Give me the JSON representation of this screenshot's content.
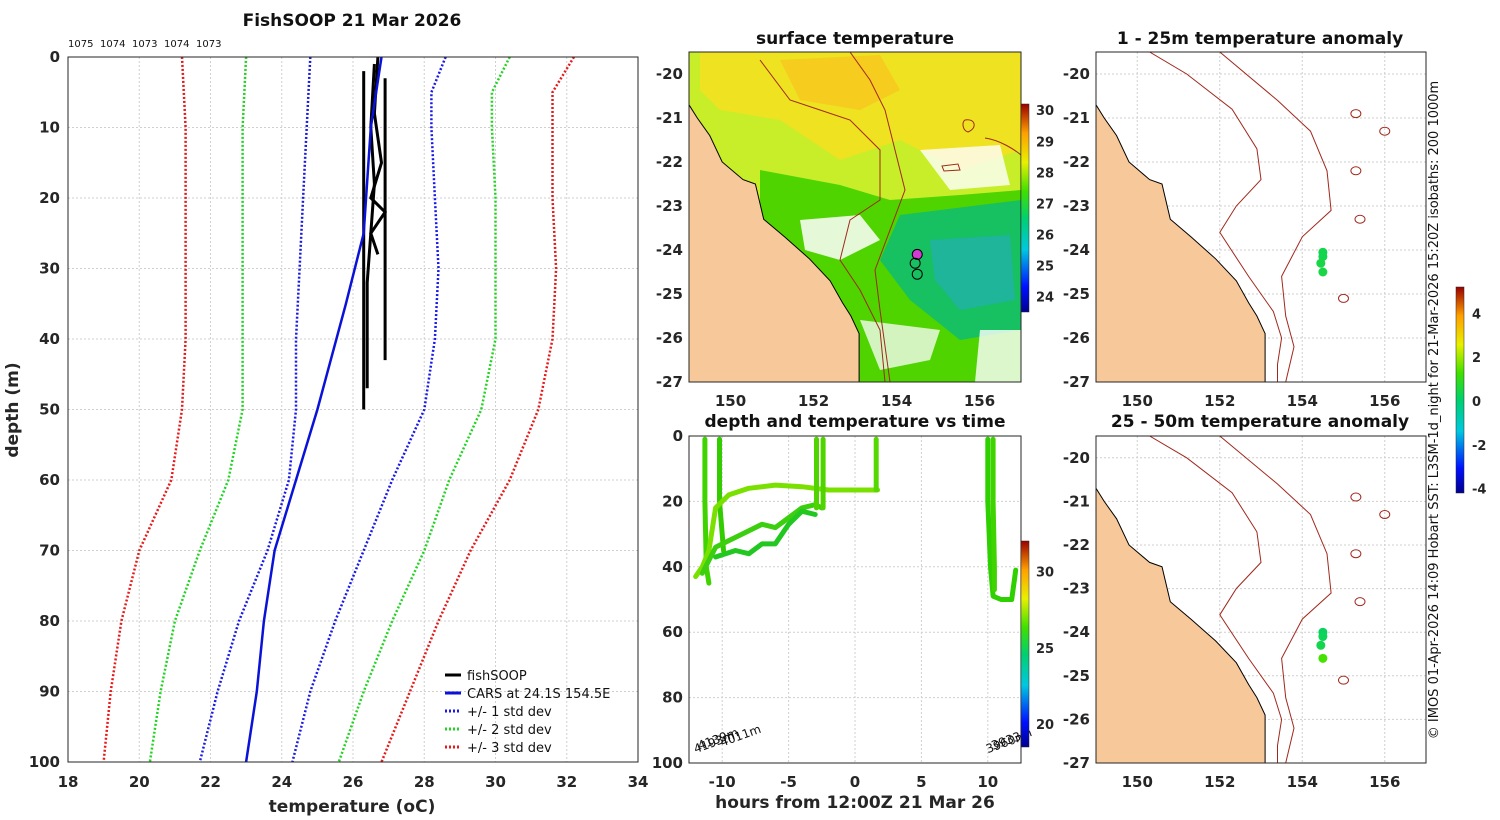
{
  "figure": {
    "side_note": "© IMOS 01-Apr-2026 14:09 Hobart SST: L3SM-1d_night for 21-Mar-2026 15:20Z isobaths: 200  1000m"
  },
  "colors": {
    "profile": "#000000",
    "cars": "#0a12d8",
    "std1": "#1a1ae6",
    "std2": "#22d422",
    "std3": "#e61a1a",
    "land": "#f7c99a",
    "isobath": "#a0281c",
    "track": "#22d022"
  },
  "chart_data": [
    {
      "id": "profile",
      "type": "line",
      "title": "FishSOOP 21 Mar 2026",
      "xlabel": "temperature (oC)",
      "ylabel": "depth (m)",
      "xlim": [
        18,
        34
      ],
      "ylim": [
        0,
        100
      ],
      "y_reversed": true,
      "x_ticks": [
        18,
        20,
        22,
        24,
        26,
        28,
        30,
        32,
        34
      ],
      "y_ticks": [
        0,
        10,
        20,
        30,
        40,
        50,
        60,
        70,
        80,
        90,
        100
      ],
      "grid": true,
      "legend_position": "bottom-right",
      "top_annotations": [
        "1075",
        "1074",
        "1073",
        "1074",
        "1073"
      ],
      "series": [
        {
          "name": "fishSOOP",
          "style": "solid",
          "color_key": "profile",
          "traces": [
            [
              [
                26.3,
                2
              ],
              [
                26.3,
                15
              ],
              [
                26.3,
                30
              ],
              [
                26.3,
                40
              ],
              [
                26.3,
                50
              ]
            ],
            [
              [
                26.6,
                1
              ],
              [
                26.5,
                10
              ],
              [
                26.6,
                18
              ],
              [
                26.5,
                25
              ],
              [
                26.4,
                32
              ],
              [
                26.4,
                40
              ],
              [
                26.4,
                47
              ]
            ],
            [
              [
                26.7,
                0
              ],
              [
                26.6,
                8
              ],
              [
                26.8,
                15
              ],
              [
                26.5,
                20
              ],
              [
                26.9,
                22
              ],
              [
                26.5,
                25
              ],
              [
                26.7,
                28
              ]
            ],
            [
              [
                26.9,
                3
              ],
              [
                26.9,
                15
              ],
              [
                26.9,
                25
              ],
              [
                26.9,
                35
              ],
              [
                26.9,
                43
              ]
            ]
          ]
        },
        {
          "name": "CARS at 24.1S 154.5E",
          "style": "solid",
          "color_key": "cars",
          "points": [
            [
              26.8,
              0
            ],
            [
              26.5,
              10
            ],
            [
              26.3,
              25
            ],
            [
              25.8,
              35
            ],
            [
              25.0,
              50
            ],
            [
              24.4,
              60
            ],
            [
              23.8,
              70
            ],
            [
              23.5,
              80
            ],
            [
              23.3,
              90
            ],
            [
              23.0,
              100
            ]
          ]
        },
        {
          "name": "+/- 1 std dev",
          "style": "dotted",
          "color_key": "std1",
          "low": [
            [
              24.8,
              0
            ],
            [
              24.7,
              10
            ],
            [
              24.6,
              20
            ],
            [
              24.5,
              30
            ],
            [
              24.4,
              40
            ],
            [
              24.4,
              50
            ],
            [
              24.2,
              60
            ],
            [
              23.6,
              70
            ],
            [
              22.8,
              80
            ],
            [
              22.2,
              90
            ],
            [
              21.7,
              100
            ]
          ],
          "high": [
            [
              28.6,
              0
            ],
            [
              28.2,
              5
            ],
            [
              28.2,
              10
            ],
            [
              28.3,
              20
            ],
            [
              28.4,
              30
            ],
            [
              28.3,
              40
            ],
            [
              28.0,
              50
            ],
            [
              27.1,
              60
            ],
            [
              26.3,
              70
            ],
            [
              25.5,
              80
            ],
            [
              24.8,
              90
            ],
            [
              24.3,
              100
            ]
          ]
        },
        {
          "name": "+/- 2 std dev",
          "style": "dotted",
          "color_key": "std2",
          "low": [
            [
              23.0,
              0
            ],
            [
              22.9,
              10
            ],
            [
              22.9,
              20
            ],
            [
              22.9,
              30
            ],
            [
              22.9,
              40
            ],
            [
              22.9,
              50
            ],
            [
              22.5,
              60
            ],
            [
              21.7,
              70
            ],
            [
              21.0,
              80
            ],
            [
              20.6,
              90
            ],
            [
              20.3,
              100
            ]
          ],
          "high": [
            [
              30.4,
              0
            ],
            [
              29.9,
              5
            ],
            [
              29.9,
              10
            ],
            [
              30.0,
              20
            ],
            [
              30.0,
              30
            ],
            [
              30.0,
              40
            ],
            [
              29.6,
              50
            ],
            [
              28.7,
              60
            ],
            [
              28.0,
              70
            ],
            [
              27.1,
              80
            ],
            [
              26.3,
              90
            ],
            [
              25.6,
              100
            ]
          ]
        },
        {
          "name": "+/- 3 std dev",
          "style": "dotted",
          "color_key": "std3",
          "low": [
            [
              21.2,
              0
            ],
            [
              21.3,
              10
            ],
            [
              21.3,
              20
            ],
            [
              21.3,
              30
            ],
            [
              21.3,
              40
            ],
            [
              21.2,
              50
            ],
            [
              20.9,
              60
            ],
            [
              20.0,
              70
            ],
            [
              19.5,
              80
            ],
            [
              19.2,
              90
            ],
            [
              19.0,
              100
            ]
          ],
          "high": [
            [
              32.2,
              0
            ],
            [
              31.6,
              5
            ],
            [
              31.6,
              10
            ],
            [
              31.6,
              20
            ],
            [
              31.7,
              30
            ],
            [
              31.6,
              40
            ],
            [
              31.2,
              50
            ],
            [
              30.4,
              60
            ],
            [
              29.3,
              70
            ],
            [
              28.4,
              80
            ],
            [
              27.6,
              90
            ],
            [
              26.8,
              100
            ]
          ]
        }
      ]
    },
    {
      "id": "sst_map",
      "type": "heatmap",
      "title": "surface temperature",
      "xlim": [
        149,
        157
      ],
      "ylim": [
        -27,
        -19.5
      ],
      "x_ticks": [
        150,
        152,
        154,
        156
      ],
      "y_ticks": [
        -20,
        -21,
        -22,
        -23,
        -24,
        -25,
        -26,
        -27
      ],
      "colorbar": {
        "range": [
          23.5,
          30.2
        ],
        "ticks": [
          24,
          25,
          26,
          27,
          28,
          29,
          30
        ]
      },
      "markers": [
        [
          154.5,
          -24.1
        ],
        [
          154.45,
          -24.3
        ],
        [
          154.5,
          -24.55
        ]
      ]
    },
    {
      "id": "anom_shallow",
      "type": "scatter",
      "title": "1 - 25m temperature anomaly",
      "xlim": [
        149,
        157
      ],
      "ylim": [
        -27,
        -19.5
      ],
      "x_ticks": [
        150,
        152,
        154,
        156
      ],
      "y_ticks": [
        -20,
        -21,
        -22,
        -23,
        -24,
        -25,
        -26,
        -27
      ],
      "points": [
        [
          154.5,
          -24.05,
          0.4
        ],
        [
          154.5,
          -24.15,
          0.4
        ],
        [
          154.45,
          -24.3,
          0.5
        ],
        [
          154.5,
          -24.5,
          0.5
        ]
      ]
    },
    {
      "id": "anom_deep",
      "type": "scatter",
      "title": "25 - 50m temperature anomaly",
      "xlim": [
        149,
        157
      ],
      "ylim": [
        -27,
        -19.5
      ],
      "x_ticks": [
        150,
        152,
        154,
        156
      ],
      "y_ticks": [
        -20,
        -21,
        -22,
        -23,
        -24,
        -25,
        -26,
        -27
      ],
      "points": [
        [
          154.5,
          -24.0,
          0.2
        ],
        [
          154.5,
          -24.1,
          0.3
        ],
        [
          154.45,
          -24.3,
          0.4
        ],
        [
          154.5,
          -24.6,
          1.3
        ]
      ],
      "colorbar": {
        "range": [
          -4.2,
          5.2
        ],
        "ticks": [
          -4,
          -2,
          0,
          2,
          4
        ]
      }
    },
    {
      "id": "depth_time",
      "type": "scatter",
      "title": "depth and temperature vs time",
      "xlabel": "hours from 12:00Z 21 Mar 26",
      "xlim": [
        -12.5,
        12.5
      ],
      "ylim": [
        0,
        100
      ],
      "y_reversed": true,
      "x_ticks": [
        -10,
        -5,
        0,
        5,
        10
      ],
      "x_tick_labels": [
        "-10",
        "-5",
        "0",
        "5",
        "10"
      ],
      "y_ticks": [
        0,
        20,
        40,
        60,
        80,
        100
      ],
      "colorbar": {
        "range": [
          18.5,
          32
        ],
        "ticks": [
          20,
          25,
          30
        ]
      },
      "depth_labels": [
        {
          "text": "4193m",
          "x": -12,
          "y": 97
        },
        {
          "text": "4139m",
          "x": -11.7,
          "y": 96
        },
        {
          "text": "4011m",
          "x": -10,
          "y": 95
        },
        {
          "text": "3960m",
          "x": 10,
          "y": 97
        },
        {
          "text": "3933m",
          "x": 10.4,
          "y": 96
        }
      ],
      "tracks": [
        [
          [
            -11.3,
            1
          ],
          [
            -11.3,
            20
          ],
          [
            -11.2,
            40
          ],
          [
            -11.0,
            45
          ]
        ],
        [
          [
            -10.2,
            1
          ],
          [
            -10.2,
            20
          ],
          [
            -10.0,
            30
          ],
          [
            -9.9,
            35
          ]
        ],
        [
          [
            -12.0,
            43
          ],
          [
            -11.5,
            40
          ],
          [
            -11.0,
            35
          ],
          [
            -10.5,
            22
          ],
          [
            -9.5,
            18
          ],
          [
            -8.0,
            16
          ],
          [
            -6.0,
            15
          ],
          [
            -4.0,
            15.5
          ],
          [
            -2.0,
            16.5
          ],
          [
            0,
            16.5
          ],
          [
            1.7,
            16.5
          ]
        ],
        [
          [
            -11.5,
            42
          ],
          [
            -10.5,
            34
          ],
          [
            -9.5,
            32
          ],
          [
            -8.5,
            30
          ],
          [
            -7.0,
            27
          ],
          [
            -6.0,
            28
          ],
          [
            -5.0,
            25
          ],
          [
            -4.0,
            22
          ],
          [
            -3.0,
            21
          ],
          [
            -2.5,
            22
          ]
        ],
        [
          [
            -10.5,
            37
          ],
          [
            -9.0,
            35
          ],
          [
            -8.0,
            36
          ],
          [
            -7.0,
            33
          ],
          [
            -6.0,
            33
          ],
          [
            -5.0,
            27
          ],
          [
            -4.0,
            23
          ],
          [
            -3.0,
            24
          ]
        ],
        [
          [
            -2.9,
            1
          ],
          [
            -2.9,
            10
          ],
          [
            -2.9,
            22
          ]
        ],
        [
          [
            -2.4,
            1
          ],
          [
            -2.4,
            8
          ],
          [
            -2.4,
            22
          ]
        ],
        [
          [
            1.6,
            1
          ],
          [
            1.6,
            8
          ],
          [
            1.6,
            16.5
          ]
        ],
        [
          [
            10.0,
            1
          ],
          [
            10.0,
            20
          ],
          [
            10.2,
            40
          ],
          [
            10.4,
            49
          ],
          [
            11.0,
            50
          ],
          [
            11.8,
            50
          ],
          [
            12.0,
            44
          ],
          [
            12.1,
            41
          ]
        ],
        [
          [
            10.4,
            1
          ],
          [
            10.4,
            20
          ],
          [
            10.5,
            40
          ],
          [
            10.5,
            47
          ]
        ]
      ]
    }
  ]
}
